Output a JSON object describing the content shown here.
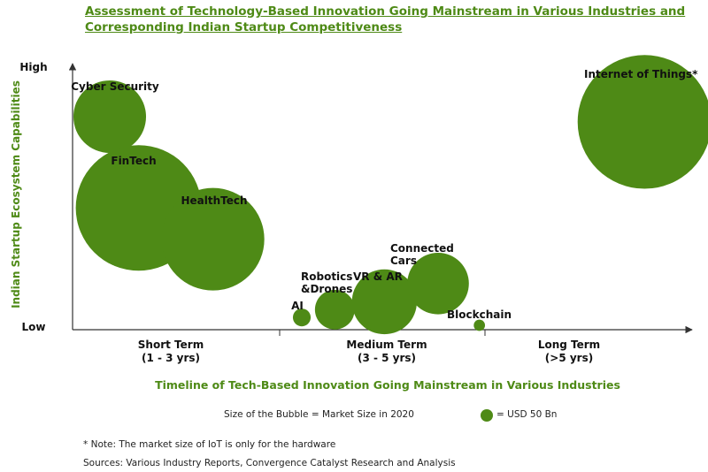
{
  "chart_data": {
    "type": "scatter",
    "title": "Assessment of Technology-Based Innovation Going Mainstream in Various Industries and Corresponding Indian Startup Competitiveness",
    "xlabel": "Timeline of Tech-Based Innovation Going Mainstream in Various Industries",
    "ylabel": "Indian Startup Ecosystem Capabilities",
    "y_ticks": [
      "Low",
      "High"
    ],
    "x_categories": [
      {
        "name": "Short Term",
        "sub": "(1 - 3 yrs)"
      },
      {
        "name": "Medium Term",
        "sub": "(3 - 5 yrs)"
      },
      {
        "name": "Long Term",
        "sub": "(>5 yrs)"
      }
    ],
    "xlim": [
      0,
      3
    ],
    "ylim": [
      0,
      1
    ],
    "bubble_color": "#4e8a16",
    "points": [
      {
        "label": "Cyber Security",
        "x": 0.18,
        "y": 0.8,
        "size": 50
      },
      {
        "label": "FinTech",
        "x": 0.32,
        "y": 0.45,
        "size": 150
      },
      {
        "label": "HealthTech",
        "x": 0.68,
        "y": 0.33,
        "size": 100
      },
      {
        "label": "AI",
        "x": 1.11,
        "y": 0.03,
        "size": 3
      },
      {
        "label": "Robotics &Drones",
        "x": 1.27,
        "y": 0.06,
        "size": 15
      },
      {
        "label": "VR & AR",
        "x": 1.51,
        "y": 0.09,
        "size": 40
      },
      {
        "label": "Connected Cars",
        "x": 1.77,
        "y": 0.16,
        "size": 36
      },
      {
        "label": "Blockchain",
        "x": 1.97,
        "y": 0.0,
        "size": 1.2
      },
      {
        "label": "Internet of Things*",
        "x": 2.77,
        "y": 0.78,
        "size": 170
      }
    ],
    "legend": {
      "caption": "Size of the Bubble = Market Size in 2020",
      "symbol_label": "= USD 50 Bn",
      "symbol_value": 50
    }
  },
  "notes": {
    "note": "* Note: The market size of IoT is only for the hardware",
    "sources": "Sources: Various Industry Reports, Convergence Catalyst Research and Analysis"
  }
}
